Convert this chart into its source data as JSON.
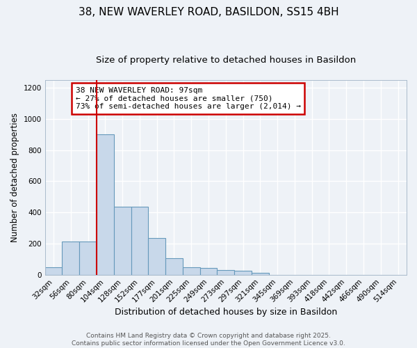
{
  "title1": "38, NEW WAVERLEY ROAD, BASILDON, SS15 4BH",
  "title2": "Size of property relative to detached houses in Basildon",
  "xlabel": "Distribution of detached houses by size in Basildon",
  "ylabel": "Number of detached properties",
  "categories": [
    "32sqm",
    "56sqm",
    "80sqm",
    "104sqm",
    "128sqm",
    "152sqm",
    "177sqm",
    "201sqm",
    "225sqm",
    "249sqm",
    "273sqm",
    "297sqm",
    "321sqm",
    "345sqm",
    "369sqm",
    "393sqm",
    "418sqm",
    "442sqm",
    "466sqm",
    "490sqm",
    "514sqm"
  ],
  "values": [
    50,
    215,
    215,
    900,
    435,
    435,
    235,
    105,
    50,
    45,
    30,
    25,
    10,
    0,
    0,
    0,
    0,
    0,
    0,
    0,
    0
  ],
  "bar_color": "#c8d8ea",
  "bar_edge_color": "#6699bb",
  "red_line_x": 2.5,
  "annotation_text": "38 NEW WAVERLEY ROAD: 97sqm\n← 27% of detached houses are smaller (750)\n73% of semi-detached houses are larger (2,014) →",
  "annotation_box_color": "#ffffff",
  "annotation_box_edge": "#cc0000",
  "vline_color": "#cc0000",
  "ylim": [
    0,
    1250
  ],
  "yticks": [
    0,
    200,
    400,
    600,
    800,
    1000,
    1200
  ],
  "background_color": "#eef2f7",
  "grid_color": "#ffffff",
  "footer": "Contains HM Land Registry data © Crown copyright and database right 2025.\nContains public sector information licensed under the Open Government Licence v3.0.",
  "title1_fontsize": 11,
  "title2_fontsize": 9.5,
  "xlabel_fontsize": 9,
  "ylabel_fontsize": 8.5,
  "tick_fontsize": 7.5,
  "footer_fontsize": 6.5
}
